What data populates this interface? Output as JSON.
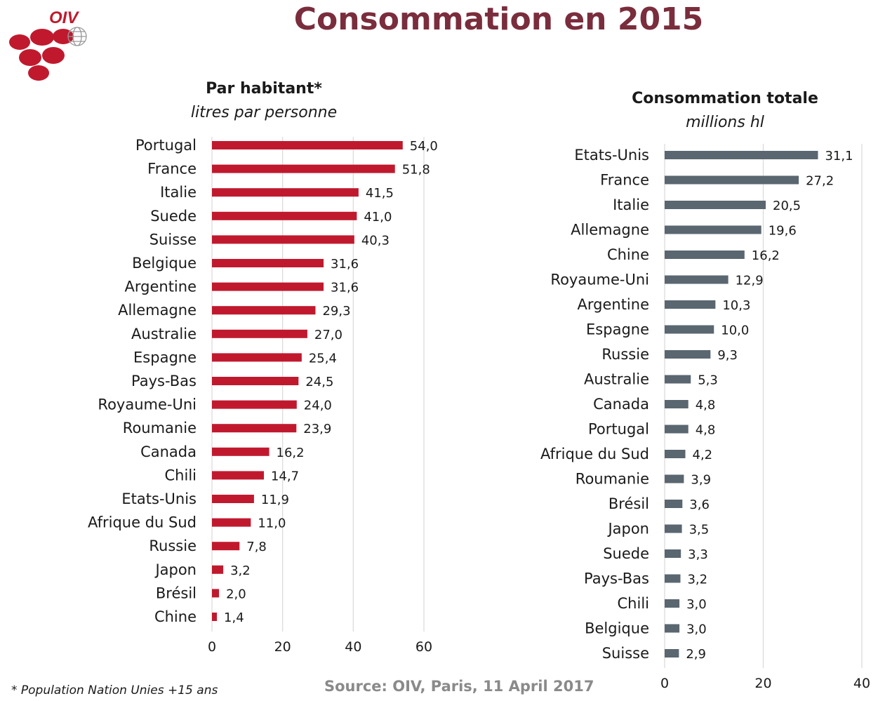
{
  "title": "Consommation en 2015",
  "logo_text": "OIV",
  "colors": {
    "title": "#7a2d3c",
    "left_bar": "#c0192e",
    "right_bar": "#5a6670",
    "logo": "#c0192e",
    "source": "#8a8a8a"
  },
  "footnote": "* Population Nation Unies +15 ans",
  "source": "Source: OIV, Paris,  11 April 2017",
  "chart_data": [
    {
      "type": "bar",
      "orientation": "horizontal",
      "title": "Par habitant*",
      "subtitle": "litres par personne",
      "xlim": [
        0,
        60
      ],
      "ticks": [
        0,
        20,
        40,
        60
      ],
      "categories": [
        "Portugal",
        "France",
        "Italie",
        "Suede",
        "Suisse",
        "Belgique",
        "Argentine",
        "Allemagne",
        "Australie",
        "Espagne",
        "Pays-Bas",
        "Royaume-Uni",
        "Roumanie",
        "Canada",
        "Chili",
        "Etats-Unis",
        "Afrique du Sud",
        "Russie",
        "Japon",
        "Brésil",
        "Chine"
      ],
      "values": [
        54.0,
        51.8,
        41.5,
        41.0,
        40.3,
        31.6,
        31.6,
        29.3,
        27.0,
        25.4,
        24.5,
        24.0,
        23.9,
        16.2,
        14.7,
        11.9,
        11.0,
        7.8,
        3.2,
        2.0,
        1.4
      ],
      "labels": [
        "54,0",
        "51,8",
        "41,5",
        "41,0",
        "40,3",
        "31,6",
        "31,6",
        "29,3",
        "27,0",
        "25,4",
        "24,5",
        "24,0",
        "23,9",
        "16,2",
        "14,7",
        "11,9",
        "11,0",
        "7,8",
        "3,2",
        "2,0",
        "1,4"
      ]
    },
    {
      "type": "bar",
      "orientation": "horizontal",
      "title": "Consommation totale",
      "subtitle": "millions hl",
      "xlim": [
        0,
        40
      ],
      "ticks": [
        0,
        20,
        40
      ],
      "categories": [
        "Etats-Unis",
        "France",
        "Italie",
        "Allemagne",
        "Chine",
        "Royaume-Uni",
        "Argentine",
        "Espagne",
        "Russie",
        "Australie",
        "Canada",
        "Portugal",
        "Afrique du Sud",
        "Roumanie",
        "Brésil",
        "Japon",
        "Suede",
        "Pays-Bas",
        "Chili",
        "Belgique",
        "Suisse"
      ],
      "values": [
        31.1,
        27.2,
        20.5,
        19.6,
        16.2,
        12.9,
        10.3,
        10.0,
        9.3,
        5.3,
        4.8,
        4.8,
        4.2,
        3.9,
        3.6,
        3.5,
        3.3,
        3.2,
        3.0,
        3.0,
        2.9
      ],
      "labels": [
        "31,1",
        "27,2",
        "20,5",
        "19,6",
        "16,2",
        "12,9",
        "10,3",
        "10,0",
        "9,3",
        "5,3",
        "4,8",
        "4,8",
        "4,2",
        "3,9",
        "3,6",
        "3,5",
        "3,3",
        "3,2",
        "3,0",
        "3,0",
        "2,9"
      ]
    }
  ]
}
